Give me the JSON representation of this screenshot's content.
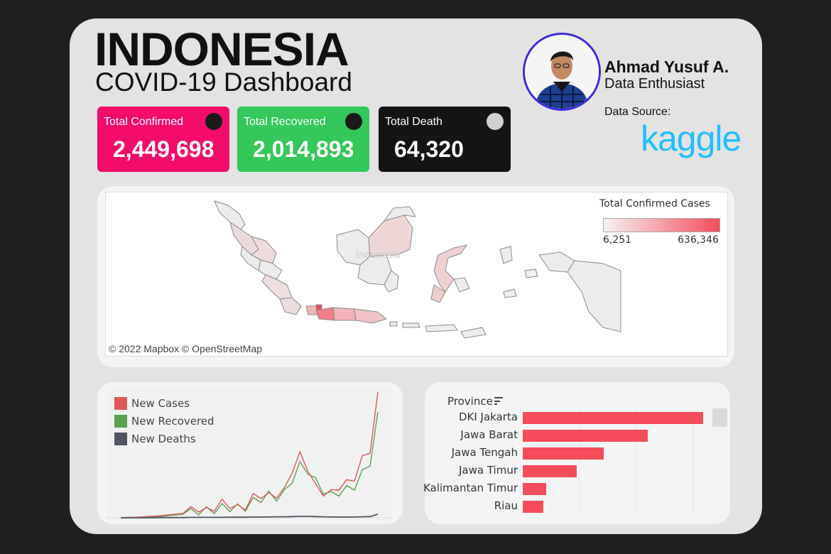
{
  "header": {
    "title": "INDONESIA",
    "subtitle": "COVID-19 Dashboard"
  },
  "kpis": [
    {
      "label": "Total Confirmed",
      "value": "2,449,698",
      "color": "#f50c6b"
    },
    {
      "label": "Total Recovered",
      "value": "2,014,893",
      "color": "#34c759"
    },
    {
      "label": "Total Death",
      "value": "64,320",
      "color": "#141414"
    }
  ],
  "author": {
    "name": "Ahmad Yusuf A.",
    "role": "Data Enthusiast",
    "source_label": "Data Source:",
    "source_logo": "kaggle"
  },
  "map": {
    "legend_title": "Total Confirmed Cases",
    "legend_min": "6,251",
    "legend_max": "636,346",
    "credit": "© 2022 Mapbox  © OpenStreetMap",
    "colors": {
      "low": "#f7f2f2",
      "high": "#f34d59"
    }
  },
  "timeseries": {
    "legend": [
      {
        "name": "New Cases",
        "color": "#e15759"
      },
      {
        "name": "New Recovered",
        "color": "#59a14f"
      },
      {
        "name": "New Deaths",
        "color": "#4e5462"
      }
    ]
  },
  "provinces": {
    "header": "Province",
    "bar_color": "#f44c58",
    "items": [
      {
        "name": "DKI Jakarta",
        "value": 636346
      },
      {
        "name": "Jawa Barat",
        "value": 440000
      },
      {
        "name": "Jawa Tengah",
        "value": 285000
      },
      {
        "name": "Jawa Timur",
        "value": 190000
      },
      {
        "name": "Kalimantan Timur",
        "value": 82000
      },
      {
        "name": "Riau",
        "value": 73000
      }
    ]
  },
  "chart_data": [
    {
      "type": "line",
      "series": [
        {
          "name": "New Cases",
          "values": [
            0,
            2,
            3,
            5,
            8,
            10,
            14,
            18,
            22,
            35,
            50,
            30,
            55,
            72,
            68,
            45,
            60,
            100,
            118,
            105,
            120,
            130,
            245,
            310,
            255,
            150,
            130,
            120,
            160,
            170,
            205,
            290,
            345,
            610
          ]
        },
        {
          "name": "New Recovered",
          "values": [
            0,
            0,
            1,
            2,
            4,
            6,
            10,
            14,
            18,
            25,
            36,
            34,
            42,
            50,
            52,
            48,
            55,
            80,
            98,
            112,
            105,
            120,
            195,
            260,
            240,
            180,
            140,
            110,
            130,
            140,
            160,
            220,
            280,
            510
          ]
        },
        {
          "name": "New Deaths",
          "values": [
            0,
            0,
            0,
            0,
            0,
            1,
            1,
            1,
            1,
            2,
            2,
            2,
            2,
            2,
            3,
            3,
            3,
            4,
            4,
            4,
            5,
            5,
            6,
            7,
            7,
            6,
            5,
            4,
            4,
            4,
            4,
            5,
            6,
            18
          ]
        }
      ]
    },
    {
      "type": "bar",
      "categories": [
        "DKI Jakarta",
        "Jawa Barat",
        "Jawa Tengah",
        "Jawa Timur",
        "Kalimantan Timur",
        "Riau"
      ],
      "values": [
        636346,
        440000,
        285000,
        190000,
        82000,
        73000
      ]
    }
  ]
}
